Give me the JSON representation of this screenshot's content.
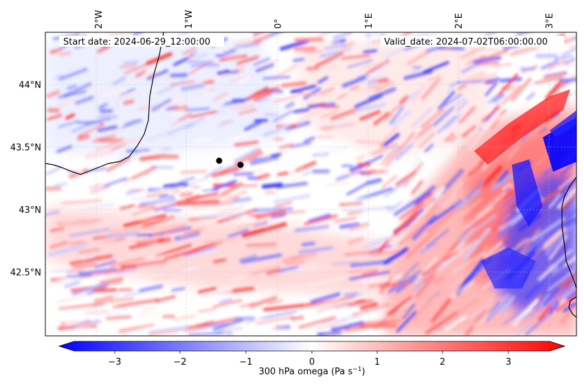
{
  "map": {
    "start_date_label": "Start date: 2024-06-29_12:00:00",
    "valid_date_label": "Valid_date: 2024-07-02T06:00:00.00",
    "lon_ticks": [
      "2°W",
      "1°W",
      "0°",
      "1°E",
      "2°E",
      "3°E"
    ],
    "lat_ticks": [
      "44°N",
      "43.5°N",
      "43°N",
      "42.5°N"
    ],
    "markers": [
      {
        "lon": -0.6,
        "lat": 43.38
      },
      {
        "lon": -0.37,
        "lat": 43.35
      }
    ]
  },
  "colorbar": {
    "label": "300 hPa omega (Pa s",
    "label_sup": "−1",
    "label_end": ")",
    "ticks": [
      "−3",
      "−2",
      "−1",
      "0",
      "1",
      "2",
      "3"
    ],
    "range": [
      -3.5,
      3.5
    ],
    "colors": {
      "low": "#0000ff",
      "mid": "#ffffff",
      "high": "#ff0000"
    }
  }
}
